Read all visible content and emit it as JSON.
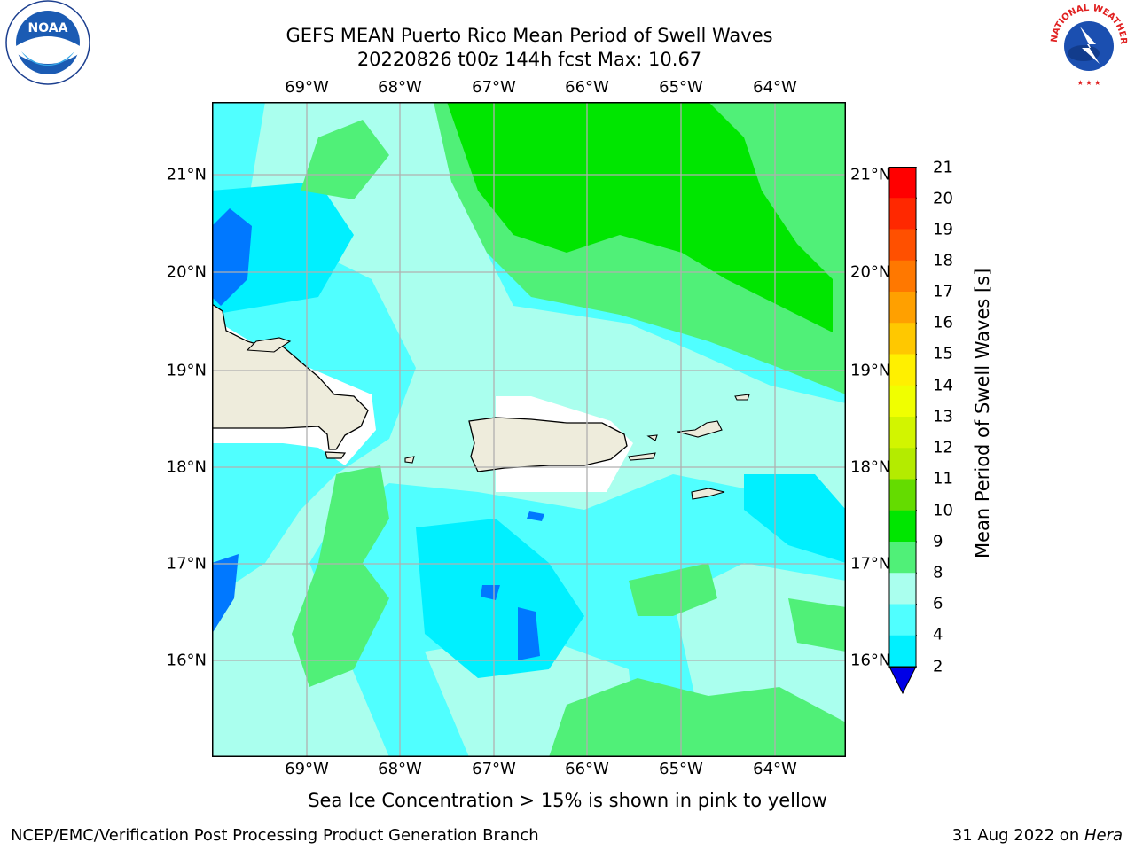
{
  "title": {
    "line1": "GEFS MEAN Puerto Rico Mean Period of Swell Waves",
    "line2": "20220826 t00z 144h fcst   Max: 10.67"
  },
  "logos": {
    "left": {
      "text": "NOAA",
      "ring_text": "NATIONAL OCEANIC AND ATMOSPHERIC ADMINISTRATION",
      "ring_text_bottom": "U.S. DEPARTMENT OF COMMERCE"
    },
    "right": {
      "ring_text": "NATIONAL WEATHER SERVICE"
    }
  },
  "map": {
    "lon_labels": [
      "69°W",
      "68°W",
      "67°W",
      "66°W",
      "65°W",
      "64°W"
    ],
    "lat_labels": [
      "21°N",
      "20°N",
      "19°N",
      "18°N",
      "17°N",
      "16°N"
    ],
    "colors": {
      "land": "#eeecdc",
      "masked": "#ffffff",
      "grid": "#b0b0b0"
    }
  },
  "colorbar": {
    "label": "Mean Period of Swell Waves [s]",
    "ticks": [
      "21",
      "20",
      "19",
      "18",
      "17",
      "16",
      "15",
      "14",
      "13",
      "12",
      "11",
      "10",
      "9",
      "8",
      "6",
      "4",
      "2"
    ],
    "colors": [
      "#ff0000",
      "#ff2800",
      "#ff5000",
      "#ff7800",
      "#ffa000",
      "#ffc800",
      "#fff000",
      "#f0ff00",
      "#d2f500",
      "#b4eb00",
      "#64dc00",
      "#00e600",
      "#50f078",
      "#aaffee",
      "#50ffff",
      "#00f0ff",
      "#0078ff"
    ],
    "extend_color": "#0000e6"
  },
  "note": "Sea Ice Concentration > 15% is shown in pink to yellow",
  "footer": {
    "left": "NCEP/EMC/Verification Post Processing Product Generation Branch",
    "right_prefix": "31 Aug 2022 on ",
    "right_italic": "Hera"
  }
}
